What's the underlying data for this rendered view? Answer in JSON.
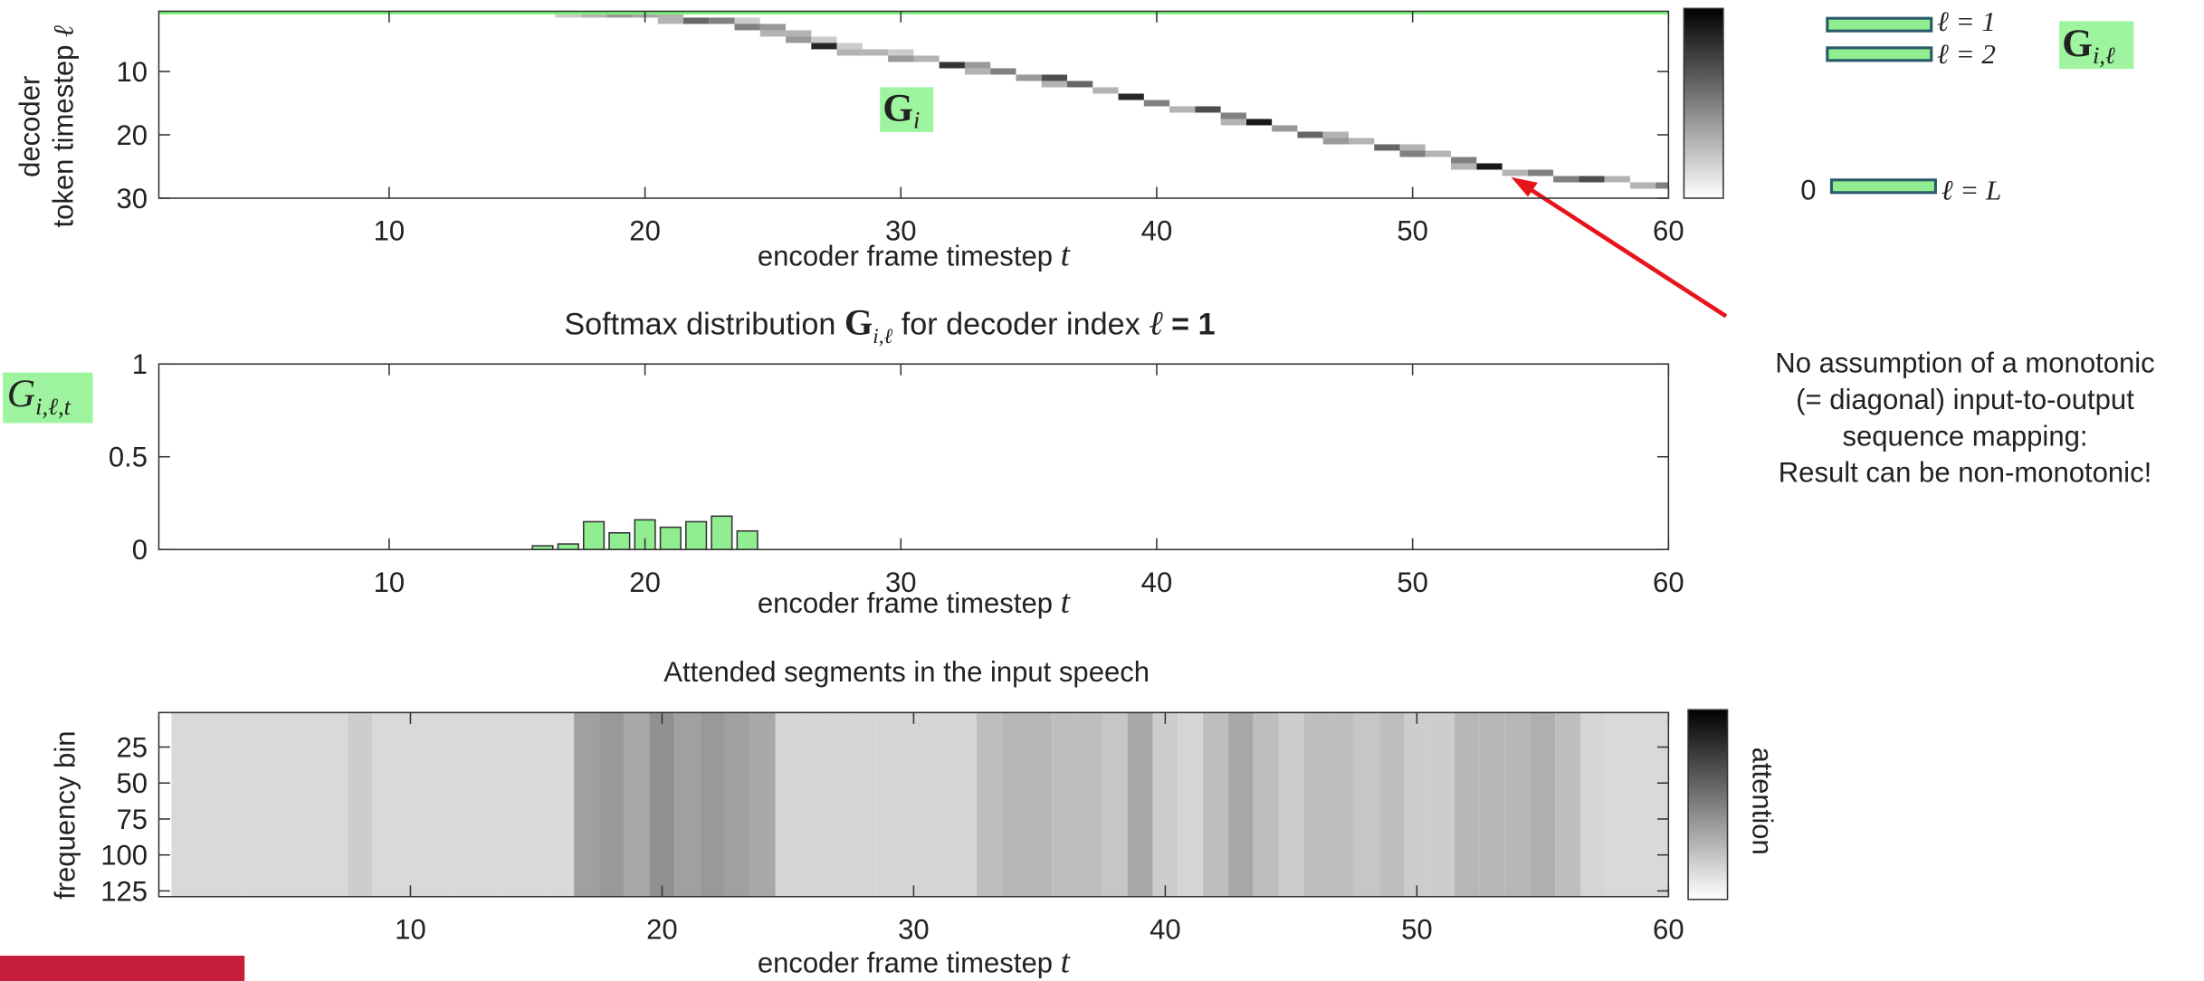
{
  "chart_data": [
    {
      "type": "heatmap",
      "x": [
        17,
        18,
        19,
        20,
        21,
        21,
        22,
        23,
        24,
        24,
        25,
        25,
        26,
        26,
        27,
        27,
        28,
        28,
        29,
        30,
        30,
        31,
        32,
        33,
        33,
        34,
        35,
        36,
        36,
        37,
        38,
        39,
        40,
        41,
        42,
        43,
        44,
        43,
        45,
        46,
        47,
        47,
        48,
        49,
        50,
        50,
        51,
        52,
        53,
        52,
        54,
        55,
        56,
        57,
        58,
        59,
        60
      ],
      "y": [
        1,
        1,
        1,
        1,
        1,
        2,
        2,
        2,
        2,
        3,
        3,
        4,
        4,
        5,
        5,
        6,
        6,
        7,
        7,
        7,
        8,
        8,
        9,
        9,
        10,
        10,
        11,
        11,
        12,
        12,
        13,
        14,
        15,
        16,
        16,
        17,
        18,
        18,
        19,
        20,
        20,
        21,
        21,
        22,
        22,
        23,
        23,
        24,
        25,
        25,
        26,
        26,
        27,
        27,
        27,
        28,
        28
      ],
      "values": [
        0.2,
        0.3,
        0.4,
        0.35,
        0.3,
        0.3,
        0.6,
        0.5,
        0.2,
        0.5,
        0.4,
        0.3,
        0.3,
        0.4,
        0.2,
        0.85,
        0.2,
        0.3,
        0.3,
        0.2,
        0.4,
        0.3,
        0.8,
        0.4,
        0.3,
        0.5,
        0.4,
        0.7,
        0.3,
        0.6,
        0.3,
        0.85,
        0.5,
        0.3,
        0.7,
        0.5,
        0.9,
        0.3,
        0.4,
        0.6,
        0.3,
        0.4,
        0.3,
        0.6,
        0.3,
        0.5,
        0.3,
        0.5,
        0.9,
        0.3,
        0.3,
        0.5,
        0.5,
        0.7,
        0.3,
        0.3,
        0.5
      ],
      "xlim": [
        1,
        60
      ],
      "ylim": [
        0.5,
        30
      ],
      "y_reversed": true,
      "xticks": [
        10,
        20,
        30,
        40,
        50,
        60
      ],
      "yticks": [
        10,
        20,
        30
      ],
      "xlabel": [
        "encoder frame timestep ",
        "t"
      ],
      "ylabel": [
        "decoder",
        "token timestep ",
        "ℓ"
      ],
      "highlight_row": 1,
      "highlight_color": "#7cf27c",
      "colorbar": true,
      "matrix_label": [
        "G",
        "i"
      ],
      "legend_labels": [
        "ℓ = 1",
        "ℓ = 2",
        "ℓ = L"
      ],
      "legend_zero": "0",
      "legend_symbol": [
        "G",
        "i,ℓ"
      ],
      "note": [
        "No assumption of a monotonic",
        "(= diagonal) input-to-output",
        "sequence mapping:",
        "Result can be non-monotonic!"
      ]
    },
    {
      "type": "bar",
      "title": [
        "Softmax distribution ",
        "G",
        "i,ℓ",
        " for decoder index ",
        "ℓ",
        " = 1"
      ],
      "x": [
        16,
        17,
        18,
        19,
        20,
        21,
        22,
        23,
        24
      ],
      "values": [
        0.02,
        0.03,
        0.15,
        0.09,
        0.16,
        0.12,
        0.15,
        0.18,
        0.1
      ],
      "color": "#90ee90",
      "xlim": [
        1,
        60
      ],
      "ylim": [
        0,
        1
      ],
      "xticks": [
        10,
        20,
        30,
        40,
        50,
        60
      ],
      "yticks": [
        0,
        0.5,
        1
      ],
      "xlabel": [
        "encoder frame timestep ",
        "t"
      ],
      "ylabel": [
        "G",
        "i,ℓ,t"
      ]
    },
    {
      "type": "spectrogram",
      "title": "Attended segments in the input speech",
      "x": [
        1,
        2,
        3,
        4,
        5,
        6,
        7,
        8,
        9,
        10,
        11,
        12,
        13,
        14,
        15,
        16,
        17,
        18,
        19,
        20,
        21,
        22,
        23,
        24,
        25,
        26,
        27,
        28,
        29,
        30,
        31,
        32,
        33,
        34,
        35,
        36,
        37,
        38,
        39,
        40,
        41,
        42,
        43,
        44,
        45,
        46,
        47,
        48,
        49,
        50,
        51,
        52,
        53,
        54,
        55,
        56,
        57,
        58,
        59,
        60
      ],
      "values": [
        0.12,
        0.12,
        0.12,
        0.12,
        0.12,
        0.12,
        0.12,
        0.2,
        0.12,
        0.12,
        0.12,
        0.12,
        0.12,
        0.12,
        0.12,
        0.12,
        0.5,
        0.55,
        0.45,
        0.6,
        0.5,
        0.55,
        0.5,
        0.45,
        0.15,
        0.15,
        0.15,
        0.15,
        0.15,
        0.15,
        0.15,
        0.15,
        0.3,
        0.35,
        0.35,
        0.3,
        0.3,
        0.25,
        0.45,
        0.2,
        0.15,
        0.3,
        0.45,
        0.3,
        0.2,
        0.3,
        0.3,
        0.25,
        0.3,
        0.2,
        0.2,
        0.35,
        0.35,
        0.35,
        0.4,
        0.3,
        0.15,
        0.12,
        0.12,
        0.12
      ],
      "xlim": [
        0,
        60
      ],
      "ylim": [
        1,
        129
      ],
      "y_reversed": true,
      "xticks": [
        10,
        20,
        30,
        40,
        50,
        60
      ],
      "yticks": [
        25,
        50,
        75,
        100,
        125
      ],
      "xlabel": [
        "encoder frame timestep ",
        "t"
      ],
      "ylabel": "frequency bin",
      "colorbar_label": "attention"
    }
  ]
}
